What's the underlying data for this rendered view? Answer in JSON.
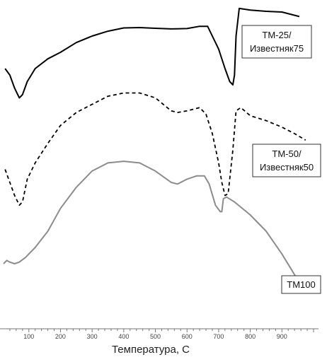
{
  "chart_data": {
    "type": "line",
    "title": "",
    "xlabel": "Температура, С",
    "ylabel": "",
    "xlim": [
      20,
      1000
    ],
    "ylim": [
      0,
      100
    ],
    "x_ticks": [
      100,
      200,
      300,
      400,
      500,
      600,
      700,
      800,
      900
    ],
    "y_axis_shown": false,
    "grid": false,
    "legend_placement": "labels boxed at right of each curve",
    "series": [
      {
        "name": "TM-25/ Известняк75",
        "label_lines": [
          "TM-25/",
          "Известняк75"
        ],
        "color": "#000000",
        "style": "solid",
        "points": [
          [
            25,
            80
          ],
          [
            40,
            78
          ],
          [
            55,
            74
          ],
          [
            70,
            71
          ],
          [
            80,
            72
          ],
          [
            95,
            76
          ],
          [
            120,
            80
          ],
          [
            160,
            83
          ],
          [
            200,
            85
          ],
          [
            250,
            88
          ],
          [
            300,
            90
          ],
          [
            350,
            91.5
          ],
          [
            400,
            92.5
          ],
          [
            450,
            92.6
          ],
          [
            500,
            92.4
          ],
          [
            550,
            92.2
          ],
          [
            600,
            92.3
          ],
          [
            640,
            93
          ],
          [
            665,
            93
          ],
          [
            680,
            90
          ],
          [
            700,
            86
          ],
          [
            720,
            80
          ],
          [
            735,
            76
          ],
          [
            745,
            75
          ],
          [
            750,
            78
          ],
          [
            755,
            90
          ],
          [
            765,
            98.5
          ],
          [
            800,
            98
          ],
          [
            850,
            97.6
          ],
          [
            900,
            97.4
          ],
          [
            940,
            96.4
          ],
          [
            955,
            96
          ]
        ]
      },
      {
        "name": "TM-50/ Известняк50",
        "label_lines": [
          "TM-50/",
          "Известняк50"
        ],
        "color": "#000000",
        "style": "dashed",
        "points": [
          [
            25,
            49
          ],
          [
            40,
            45
          ],
          [
            55,
            41
          ],
          [
            70,
            38
          ],
          [
            80,
            39
          ],
          [
            95,
            46
          ],
          [
            120,
            51
          ],
          [
            160,
            57
          ],
          [
            200,
            62.5
          ],
          [
            250,
            66.5
          ],
          [
            300,
            69
          ],
          [
            350,
            71.5
          ],
          [
            400,
            72.5
          ],
          [
            450,
            72.5
          ],
          [
            500,
            71
          ],
          [
            550,
            67
          ],
          [
            570,
            66.5
          ],
          [
            600,
            67
          ],
          [
            640,
            68
          ],
          [
            660,
            66
          ],
          [
            680,
            60
          ],
          [
            700,
            51
          ],
          [
            710,
            45
          ],
          [
            720,
            41
          ],
          [
            730,
            41.5
          ],
          [
            745,
            55
          ],
          [
            755,
            67
          ],
          [
            770,
            68
          ],
          [
            800,
            65.5
          ],
          [
            850,
            64
          ],
          [
            900,
            62
          ],
          [
            940,
            60
          ],
          [
            975,
            58
          ]
        ]
      },
      {
        "name": "TM100",
        "label_lines": [
          "TM100"
        ],
        "color": "#8c8c8c",
        "style": "solid",
        "points": [
          [
            20,
            20
          ],
          [
            30,
            21
          ],
          [
            40,
            20.5
          ],
          [
            55,
            20
          ],
          [
            70,
            20.5
          ],
          [
            90,
            22
          ],
          [
            120,
            25
          ],
          [
            160,
            30
          ],
          [
            200,
            37
          ],
          [
            250,
            43.5
          ],
          [
            300,
            48.5
          ],
          [
            350,
            51
          ],
          [
            400,
            51.5
          ],
          [
            450,
            51
          ],
          [
            500,
            48.5
          ],
          [
            550,
            45
          ],
          [
            570,
            44.5
          ],
          [
            600,
            46
          ],
          [
            630,
            47
          ],
          [
            655,
            47
          ],
          [
            670,
            44.5
          ],
          [
            690,
            38
          ],
          [
            705,
            36
          ],
          [
            710,
            36
          ],
          [
            715,
            40
          ],
          [
            725,
            40.5
          ],
          [
            750,
            39
          ],
          [
            800,
            35
          ],
          [
            850,
            30
          ],
          [
            900,
            23
          ],
          [
            950,
            15
          ],
          [
            990,
            11
          ]
        ]
      }
    ]
  }
}
